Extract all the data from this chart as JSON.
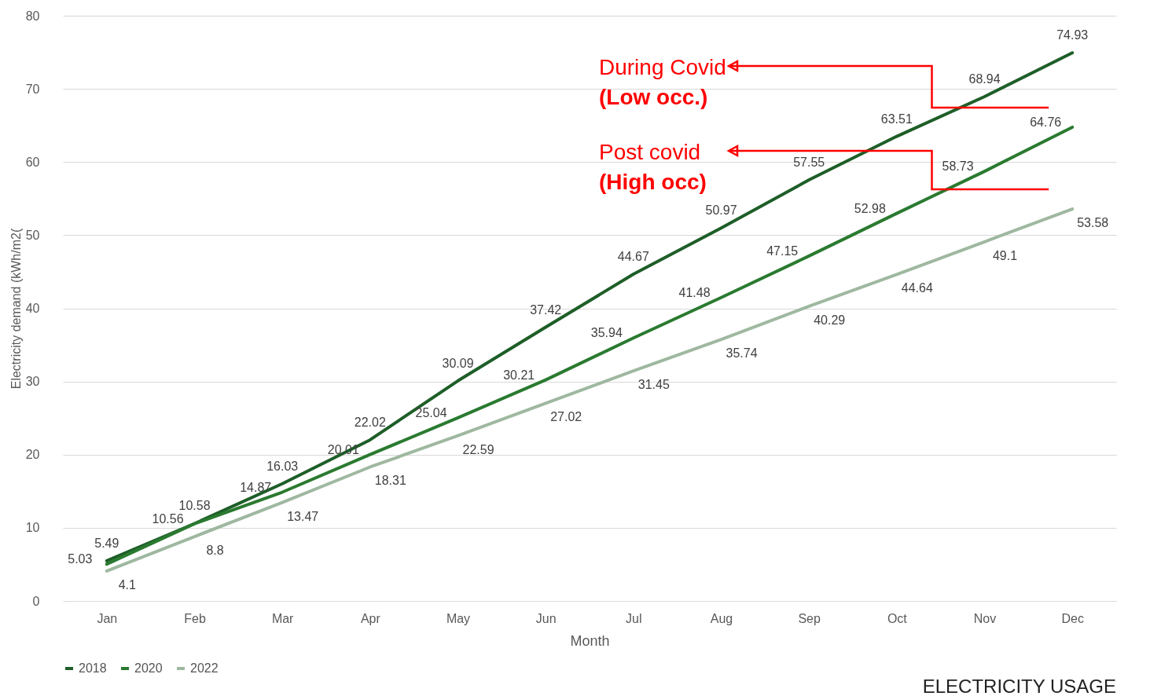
{
  "chart_data": {
    "type": "line",
    "title": "ELECTRICITY USAGE",
    "xlabel": "Month",
    "ylabel": "Electricity demand (kWh/m2(",
    "categories": [
      "Jan",
      "Feb",
      "Mar",
      "Apr",
      "May",
      "Jun",
      "Jul",
      "Aug",
      "Sep",
      "Oct",
      "Nov",
      "Dec"
    ],
    "series": [
      {
        "name": "2018",
        "color": "#1e5e28",
        "values": [
          5.49,
          10.58,
          16.03,
          22.02,
          30.09,
          37.42,
          44.67,
          50.97,
          57.55,
          63.51,
          68.94,
          74.93
        ]
      },
      {
        "name": "2020",
        "color": "#2a7a30",
        "values": [
          5.03,
          10.56,
          14.87,
          20.01,
          25.04,
          30.21,
          35.94,
          41.48,
          47.15,
          52.98,
          58.73,
          64.76
        ]
      },
      {
        "name": "2022",
        "color": "#9fb8a0",
        "values": [
          4.1,
          8.8,
          13.47,
          18.31,
          22.59,
          27.02,
          31.45,
          35.74,
          40.29,
          44.64,
          49.1,
          53.58
        ]
      }
    ],
    "ylim": [
      0,
      80
    ],
    "yticks": [
      0,
      10,
      20,
      30,
      40,
      50,
      60,
      70,
      80
    ],
    "grid": "y",
    "legend": "bottom",
    "data_labels": true,
    "marker": "none",
    "line_style": "solid",
    "annotations": [
      "During Covid\n(Low occ.)",
      "Post covid\n(High occ)"
    ]
  }
}
